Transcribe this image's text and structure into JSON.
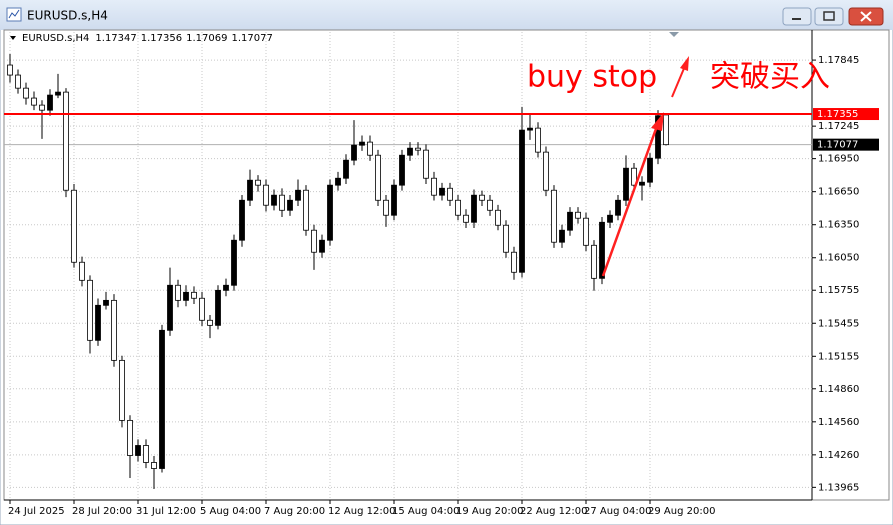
{
  "window_title": "EURUSD.s,H4",
  "chart_data": {
    "type": "candlestick",
    "symbol": "EURUSD.s,H4",
    "categories": [
      "24 Jul 2025",
      null,
      null,
      null,
      null,
      null,
      null,
      null,
      "28 Jul 20:00",
      null,
      null,
      null,
      null,
      null,
      null,
      null,
      "31 Jul 12:00",
      null,
      null,
      null,
      null,
      null,
      null,
      null,
      "5 Aug 04:00",
      null,
      null,
      null,
      null,
      null,
      null,
      null,
      "7 Aug 20:00",
      null,
      null,
      null,
      null,
      null,
      null,
      null,
      "12 Aug 12:00",
      null,
      null,
      null,
      null,
      null,
      null,
      null,
      "15 Aug 04:00",
      null,
      null,
      null,
      null,
      null,
      null,
      null,
      "19 Aug 20:00",
      null,
      null,
      null,
      null,
      null,
      null,
      null,
      "22 Aug 12:00",
      null,
      null,
      null,
      null,
      null,
      null,
      null,
      "27 Aug 04:00",
      null,
      null,
      null,
      null,
      null,
      null,
      null,
      "29 Aug 20:00",
      null,
      null
    ],
    "open": [
      1.178,
      1.17709,
      1.1759,
      1.175,
      1.17436,
      1.1739,
      1.17527,
      1.17554,
      1.16663,
      1.16009,
      1.15845,
      1.153,
      1.15618,
      1.15663,
      1.15118,
      1.14573,
      1.14254,
      1.14345,
      1.14191,
      1.14136,
      1.15391,
      1.158,
      1.15663,
      1.15736,
      1.15682,
      1.15482,
      1.15436,
      1.15754,
      1.158,
      1.16209,
      1.16572,
      1.16754,
      1.16709,
      1.16527,
      1.16618,
      1.16481,
      1.16572,
      1.16663,
      1.163,
      1.161,
      1.16209,
      1.16709,
      1.16772,
      1.16936,
      1.17072,
      1.171,
      1.16981,
      1.16572,
      1.16436,
      1.16709,
      1.16981,
      1.17045,
      1.17027,
      1.16772,
      1.16618,
      1.16681,
      1.16572,
      1.16436,
      1.16372,
      1.16618,
      1.16572,
      1.16481,
      1.16345,
      1.161,
      1.15918,
      1.17209,
      1.17227,
      1.17009,
      1.16663,
      1.16191,
      1.163,
      1.16463,
      1.16409,
      1.16163,
      1.15863,
      1.16372,
      1.16436,
      1.16572,
      1.16863,
      1.16709,
      1.16736,
      1.16954,
      1.17347
    ],
    "high": [
      1.179,
      1.1776,
      1.1764,
      1.1756,
      1.1748,
      1.1758,
      1.1772,
      1.1759,
      1.1672,
      1.1606,
      1.1589,
      1.1568,
      1.1574,
      1.1572,
      1.1516,
      1.1462,
      1.144,
      1.144,
      1.1425,
      1.1544,
      1.1596,
      1.1585,
      1.158,
      1.1579,
      1.1574,
      1.1553,
      1.158,
      1.1586,
      1.1626,
      1.1662,
      1.1685,
      1.168,
      1.1676,
      1.1667,
      1.1668,
      1.1662,
      1.1676,
      1.1671,
      1.1635,
      1.1626,
      1.1676,
      1.1683,
      1.1699,
      1.173,
      1.1716,
      1.1716,
      1.1703,
      1.1662,
      1.1676,
      1.1703,
      1.171,
      1.171,
      1.1708,
      1.1683,
      1.1673,
      1.1673,
      1.1662,
      1.1649,
      1.1667,
      1.1666,
      1.1662,
      1.1653,
      1.1639,
      1.1615,
      1.1742,
      1.1735,
      1.1728,
      1.1706,
      1.1671,
      1.1635,
      1.1651,
      1.1651,
      1.1646,
      1.1621,
      1.1642,
      1.1648,
      1.1662,
      1.1698,
      1.1691,
      1.1679,
      1.17,
      1.1739,
      1.17356
    ],
    "low": [
      1.1764,
      1.1754,
      1.1744,
      1.1739,
      1.1713,
      1.1734,
      1.175,
      1.166,
      1.1596,
      1.1579,
      1.1518,
      1.1525,
      1.1558,
      1.1506,
      1.1451,
      1.1405,
      1.142,
      1.1414,
      1.1395,
      1.141,
      1.1534,
      1.156,
      1.1561,
      1.1563,
      1.1543,
      1.1532,
      1.154,
      1.157,
      1.1575,
      1.1615,
      1.1652,
      1.1665,
      1.1647,
      1.1648,
      1.1642,
      1.1643,
      1.1652,
      1.1625,
      1.1594,
      1.1605,
      1.1616,
      1.1666,
      1.1672,
      1.1689,
      1.1702,
      1.1693,
      1.1652,
      1.1633,
      1.1639,
      1.1666,
      1.1693,
      1.1698,
      1.1672,
      1.1657,
      1.1657,
      1.1652,
      1.1639,
      1.1632,
      1.1632,
      1.1652,
      1.1643,
      1.163,
      1.1605,
      1.1585,
      1.1587,
      1.1712,
      1.1696,
      1.1661,
      1.1614,
      1.1614,
      1.1625,
      1.1636,
      1.1611,
      1.1575,
      1.1581,
      1.1632,
      1.1639,
      1.1652,
      1.1666,
      1.1657,
      1.1669,
      1.169,
      1.17069
    ],
    "close": [
      1.17709,
      1.1759,
      1.175,
      1.17436,
      1.1739,
      1.17527,
      1.17554,
      1.16663,
      1.16009,
      1.15845,
      1.153,
      1.15618,
      1.15663,
      1.15118,
      1.14573,
      1.14254,
      1.14345,
      1.14191,
      1.14136,
      1.15391,
      1.158,
      1.15663,
      1.15736,
      1.15682,
      1.15482,
      1.15436,
      1.15754,
      1.158,
      1.16209,
      1.16572,
      1.16754,
      1.16709,
      1.16527,
      1.16618,
      1.16481,
      1.16572,
      1.16663,
      1.163,
      1.161,
      1.16209,
      1.16709,
      1.16772,
      1.16936,
      1.17072,
      1.171,
      1.16981,
      1.16572,
      1.16436,
      1.16709,
      1.16981,
      1.17045,
      1.17027,
      1.16772,
      1.16618,
      1.16681,
      1.16572,
      1.16436,
      1.16372,
      1.16618,
      1.16572,
      1.16481,
      1.16345,
      1.161,
      1.15918,
      1.17209,
      1.17227,
      1.17009,
      1.16663,
      1.16191,
      1.163,
      1.16463,
      1.16409,
      1.16163,
      1.15863,
      1.16372,
      1.16436,
      1.16572,
      1.16863,
      1.16709,
      1.16736,
      1.16954,
      1.1734,
      1.17077
    ],
    "bull_color": "#000000",
    "bear_color": "#ffffff",
    "ylim": [
      1.1385,
      1.181
    ],
    "yticks": [
      1.17845,
      1.17245,
      {
        "value": 1.1695,
        "label": "1.16950"
      },
      {
        "value": 1.1665,
        "label": "1.16650"
      },
      {
        "value": 1.1635,
        "label": "1.16350"
      },
      {
        "value": 1.1605,
        "label": "1.16050"
      },
      1.15755,
      1.15455,
      1.15155,
      {
        "value": 1.1486,
        "label": "1.14860"
      },
      {
        "value": 1.1456,
        "label": "1.14560"
      },
      {
        "value": 1.1426,
        "label": "1.14260"
      },
      1.13965
    ],
    "grid": true,
    "hlines": [
      {
        "value": 1.17355,
        "color": "#ff0000"
      }
    ],
    "annotations": [
      "buy stop",
      "突破买入"
    ],
    "annotation_color": "#ff0000"
  }
}
